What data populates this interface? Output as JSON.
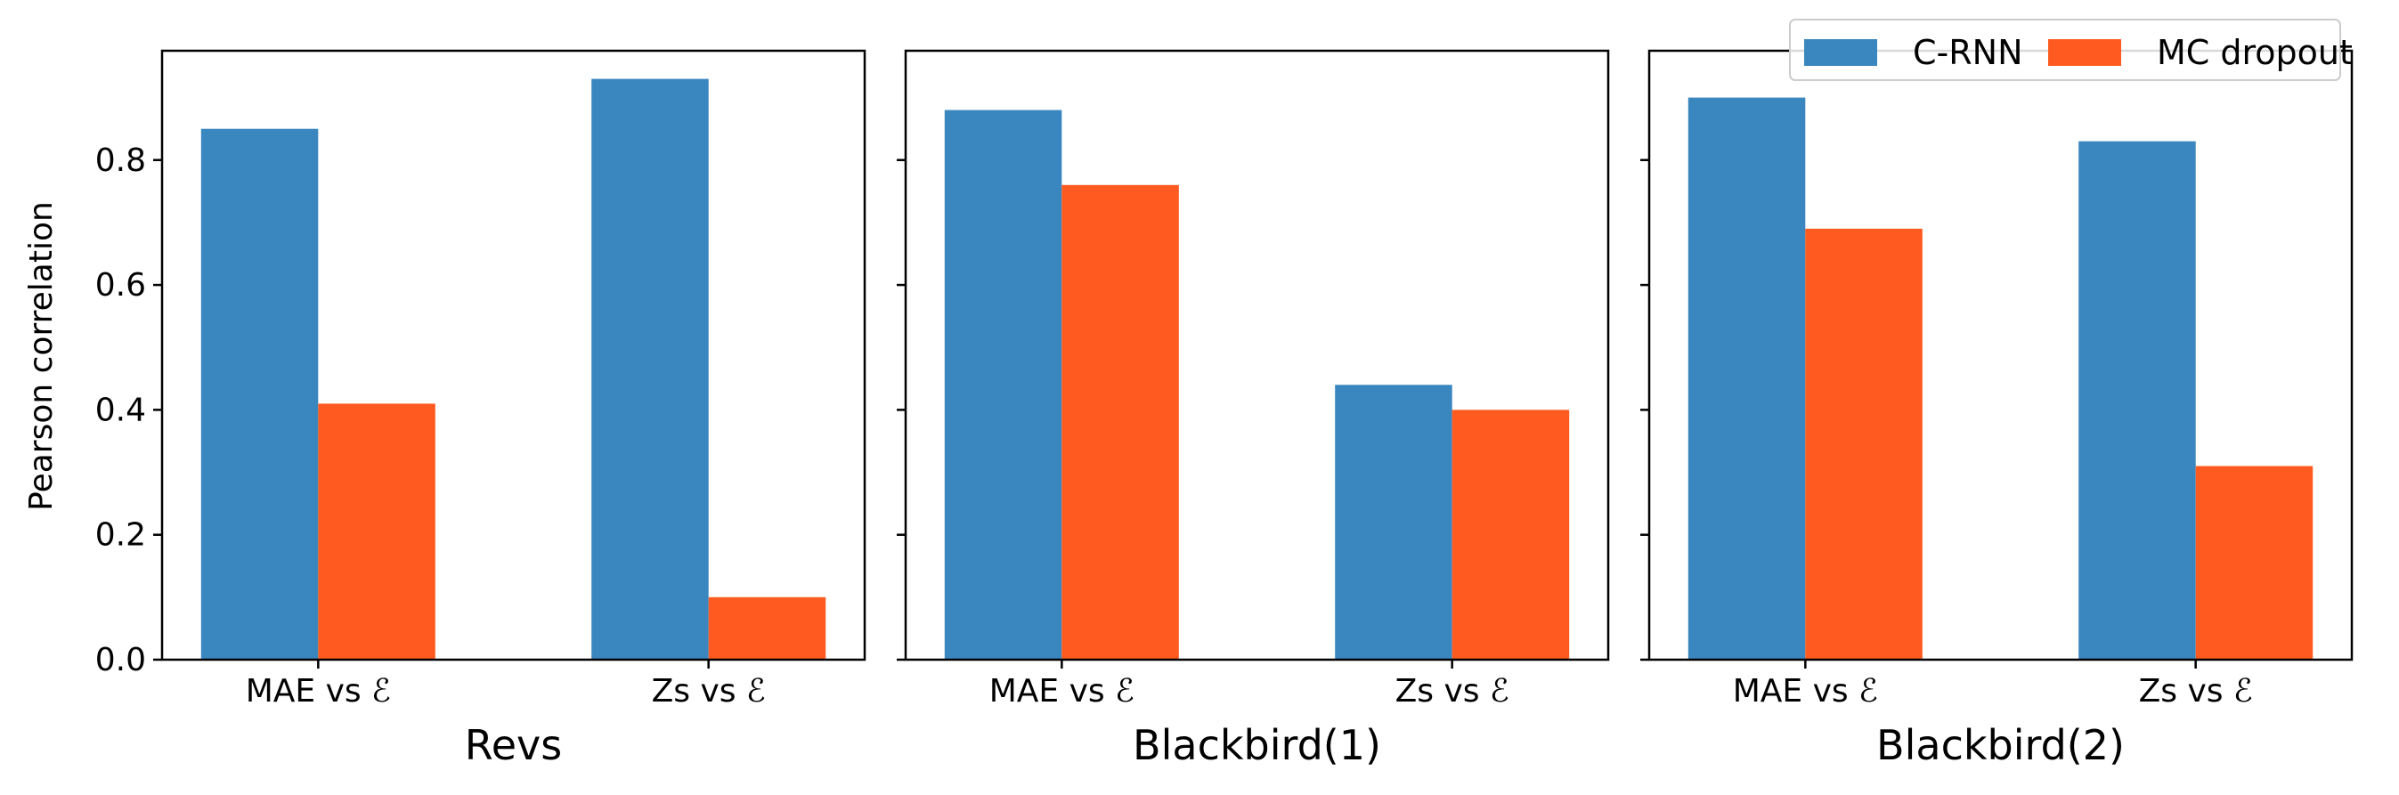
{
  "chart_data": {
    "type": "bar",
    "ylabel": "Pearson correlation",
    "ylim": [
      0,
      0.975
    ],
    "yticks": [
      "0.0",
      "0.2",
      "0.4",
      "0.6",
      "0.8"
    ],
    "ytick_values": [
      0,
      0.2,
      0.4,
      0.6,
      0.8
    ],
    "legend": {
      "placement": "top-right",
      "entries": [
        {
          "name": "C-RNN",
          "color": "#3a86be"
        },
        {
          "name": "MC dropout",
          "color": "#ff5a1f"
        }
      ]
    },
    "panels": [
      {
        "title": "Revs",
        "categories": [
          "MAE vs ℰ",
          "Zs vs ℰ"
        ],
        "series": [
          {
            "name": "C-RNN",
            "values": [
              0.85,
              0.93
            ]
          },
          {
            "name": "MC dropout",
            "values": [
              0.41,
              0.1
            ]
          }
        ]
      },
      {
        "title": "Blackbird(1)",
        "categories": [
          "MAE vs ℰ",
          "Zs vs ℰ"
        ],
        "series": [
          {
            "name": "C-RNN",
            "values": [
              0.88,
              0.44
            ]
          },
          {
            "name": "MC dropout",
            "values": [
              0.76,
              0.4
            ]
          }
        ]
      },
      {
        "title": "Blackbird(2)",
        "categories": [
          "MAE vs ℰ",
          "Zs vs ℰ"
        ],
        "series": [
          {
            "name": "C-RNN",
            "values": [
              0.9,
              0.83
            ]
          },
          {
            "name": "MC dropout",
            "values": [
              0.69,
              0.31
            ]
          }
        ]
      }
    ]
  }
}
